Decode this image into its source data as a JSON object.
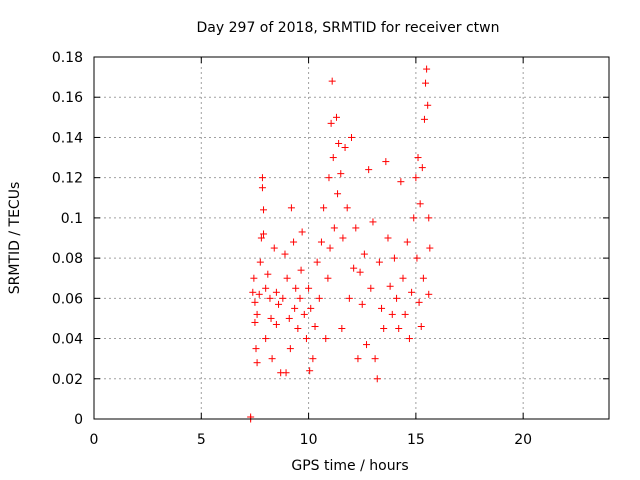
{
  "chart_data": {
    "type": "scatter",
    "title": "Day 297 of 2018, SRMTID for receiver ctwn",
    "xlabel": "GPS time / hours",
    "ylabel": "SRMTID / TECUs",
    "xlim": [
      0,
      24
    ],
    "ylim": [
      0,
      0.18
    ],
    "xticks": [
      0,
      5,
      10,
      15,
      20
    ],
    "xtick_labels": [
      "0",
      "5",
      "10",
      "15",
      "20"
    ],
    "yticks": [
      0,
      0.02,
      0.04,
      0.06,
      0.08,
      0.1,
      0.12,
      0.14,
      0.16,
      0.18
    ],
    "ytick_labels": [
      "0",
      "0.02",
      "0.04",
      "0.06",
      "0.08",
      "0.1",
      "0.12",
      "0.14",
      "0.16",
      "0.18"
    ],
    "grid": true,
    "marker": "plus",
    "color": "#ff0000",
    "x_extent": [
      7.3,
      15.7
    ],
    "series": [
      {
        "name": "SRMTID",
        "points": [
          [
            7.3,
            0.0
          ],
          [
            7.3,
            0.001
          ],
          [
            7.4,
            0.063
          ],
          [
            7.45,
            0.07
          ],
          [
            7.5,
            0.058
          ],
          [
            7.5,
            0.048
          ],
          [
            7.55,
            0.035
          ],
          [
            7.6,
            0.028
          ],
          [
            7.6,
            0.052
          ],
          [
            7.7,
            0.062
          ],
          [
            7.75,
            0.078
          ],
          [
            7.8,
            0.09
          ],
          [
            7.85,
            0.12
          ],
          [
            7.85,
            0.115
          ],
          [
            7.9,
            0.104
          ],
          [
            7.9,
            0.092
          ],
          [
            8.0,
            0.065
          ],
          [
            8.0,
            0.04
          ],
          [
            8.1,
            0.072
          ],
          [
            8.2,
            0.06
          ],
          [
            8.25,
            0.05
          ],
          [
            8.3,
            0.03
          ],
          [
            8.4,
            0.085
          ],
          [
            8.5,
            0.063
          ],
          [
            8.5,
            0.047
          ],
          [
            8.6,
            0.057
          ],
          [
            8.7,
            0.023
          ],
          [
            8.8,
            0.06
          ],
          [
            8.9,
            0.082
          ],
          [
            8.95,
            0.023
          ],
          [
            9.0,
            0.07
          ],
          [
            9.1,
            0.05
          ],
          [
            9.15,
            0.035
          ],
          [
            9.2,
            0.105
          ],
          [
            9.3,
            0.088
          ],
          [
            9.35,
            0.055
          ],
          [
            9.4,
            0.065
          ],
          [
            9.5,
            0.045
          ],
          [
            9.6,
            0.06
          ],
          [
            9.65,
            0.074
          ],
          [
            9.7,
            0.093
          ],
          [
            9.8,
            0.052
          ],
          [
            9.9,
            0.04
          ],
          [
            10.0,
            0.065
          ],
          [
            10.05,
            0.024
          ],
          [
            10.1,
            0.055
          ],
          [
            10.2,
            0.03
          ],
          [
            10.3,
            0.046
          ],
          [
            10.4,
            0.078
          ],
          [
            10.5,
            0.06
          ],
          [
            10.6,
            0.088
          ],
          [
            10.7,
            0.105
          ],
          [
            10.8,
            0.04
          ],
          [
            10.9,
            0.07
          ],
          [
            10.95,
            0.12
          ],
          [
            11.0,
            0.085
          ],
          [
            11.05,
            0.147
          ],
          [
            11.1,
            0.168
          ],
          [
            11.15,
            0.13
          ],
          [
            11.2,
            0.095
          ],
          [
            11.3,
            0.15
          ],
          [
            11.35,
            0.112
          ],
          [
            11.4,
            0.137
          ],
          [
            11.5,
            0.122
          ],
          [
            11.55,
            0.045
          ],
          [
            11.6,
            0.09
          ],
          [
            11.7,
            0.135
          ],
          [
            11.8,
            0.105
          ],
          [
            11.9,
            0.06
          ],
          [
            12.0,
            0.14
          ],
          [
            12.1,
            0.075
          ],
          [
            12.2,
            0.095
          ],
          [
            12.3,
            0.03
          ],
          [
            12.4,
            0.073
          ],
          [
            12.5,
            0.057
          ],
          [
            12.6,
            0.082
          ],
          [
            12.7,
            0.037
          ],
          [
            12.8,
            0.124
          ],
          [
            12.9,
            0.065
          ],
          [
            13.0,
            0.098
          ],
          [
            13.1,
            0.03
          ],
          [
            13.2,
            0.02
          ],
          [
            13.3,
            0.078
          ],
          [
            13.4,
            0.055
          ],
          [
            13.5,
            0.045
          ],
          [
            13.6,
            0.128
          ],
          [
            13.7,
            0.09
          ],
          [
            13.8,
            0.066
          ],
          [
            13.9,
            0.052
          ],
          [
            14.0,
            0.08
          ],
          [
            14.1,
            0.06
          ],
          [
            14.2,
            0.045
          ],
          [
            14.3,
            0.118
          ],
          [
            14.4,
            0.07
          ],
          [
            14.5,
            0.052
          ],
          [
            14.6,
            0.088
          ],
          [
            14.7,
            0.04
          ],
          [
            14.8,
            0.063
          ],
          [
            14.9,
            0.1
          ],
          [
            15.0,
            0.12
          ],
          [
            15.05,
            0.08
          ],
          [
            15.1,
            0.13
          ],
          [
            15.15,
            0.058
          ],
          [
            15.2,
            0.107
          ],
          [
            15.25,
            0.046
          ],
          [
            15.3,
            0.125
          ],
          [
            15.35,
            0.07
          ],
          [
            15.4,
            0.149
          ],
          [
            15.45,
            0.167
          ],
          [
            15.5,
            0.174
          ],
          [
            15.55,
            0.156
          ],
          [
            15.6,
            0.1
          ],
          [
            15.65,
            0.085
          ],
          [
            15.6,
            0.062
          ]
        ]
      }
    ]
  }
}
